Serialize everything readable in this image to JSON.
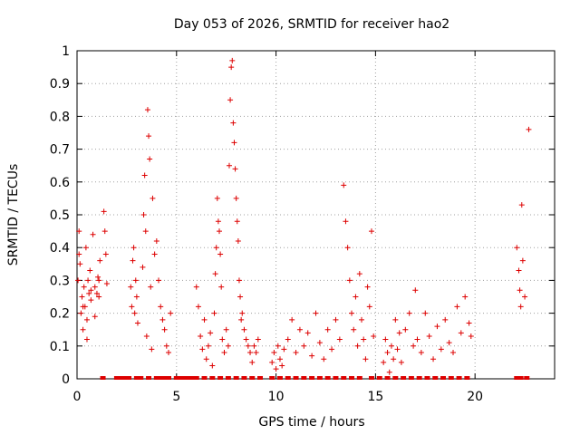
{
  "chart_data": {
    "type": "scatter",
    "title": "Day 053 of 2026, SRMTID for receiver hao2",
    "xlabel": "GPS time / hours",
    "ylabel": "SRMTID / TECUs",
    "xlim": [
      0,
      24
    ],
    "ylim": [
      0,
      1
    ],
    "xticks": [
      0,
      5,
      10,
      15,
      20
    ],
    "xtick_labels": [
      "0",
      "5",
      "10",
      "15",
      "20"
    ],
    "yticks": [
      0,
      0.1,
      0.2,
      0.3,
      0.4,
      0.5,
      0.6,
      0.7,
      0.8,
      0.9,
      1
    ],
    "ytick_labels": [
      "0",
      "0.1",
      "0.2",
      "0.3",
      "0.4",
      "0.5",
      "0.6",
      "0.7",
      "0.8",
      "0.9",
      "1"
    ],
    "grid": true,
    "marker": "+",
    "color": "#dd0000",
    "x": [
      0.05,
      0.1,
      0.15,
      0.2,
      0.25,
      0.3,
      0.35,
      0.4,
      0.45,
      0.5,
      0.55,
      0.6,
      0.65,
      0.7,
      0.8,
      0.9,
      1.0,
      1.1,
      0.1,
      0.3,
      0.5,
      0.7,
      0.9,
      1.05,
      1.1,
      1.15,
      1.35,
      1.4,
      1.45,
      1.5,
      2.7,
      2.75,
      2.8,
      2.85,
      2.9,
      2.95,
      3.0,
      3.05,
      3.3,
      3.35,
      3.4,
      3.45,
      3.5,
      3.55,
      3.6,
      3.65,
      3.7,
      3.75,
      3.8,
      3.9,
      4.0,
      4.1,
      4.2,
      4.3,
      4.4,
      4.5,
      4.6,
      4.7,
      6.0,
      6.1,
      6.2,
      6.3,
      6.4,
      6.5,
      6.6,
      6.7,
      6.8,
      6.9,
      6.95,
      7.0,
      7.05,
      7.1,
      7.15,
      7.2,
      7.25,
      7.3,
      7.4,
      7.5,
      7.6,
      7.65,
      7.7,
      7.75,
      7.8,
      7.85,
      7.9,
      7.95,
      8.0,
      8.05,
      8.1,
      8.15,
      8.2,
      8.25,
      8.3,
      8.4,
      8.5,
      8.6,
      8.7,
      8.8,
      8.9,
      9.0,
      9.1,
      9.8,
      9.9,
      10.0,
      10.1,
      10.2,
      10.3,
      10.4,
      10.6,
      10.8,
      11.0,
      11.2,
      11.4,
      11.6,
      11.8,
      12.0,
      12.2,
      12.4,
      12.6,
      12.8,
      13.0,
      13.2,
      13.4,
      13.5,
      13.6,
      13.7,
      13.8,
      13.9,
      14.0,
      14.1,
      14.2,
      14.3,
      14.4,
      14.5,
      14.6,
      14.7,
      14.8,
      14.9,
      15.4,
      15.5,
      15.6,
      15.7,
      15.8,
      15.9,
      16.0,
      16.1,
      16.2,
      16.3,
      16.5,
      16.7,
      16.9,
      17.0,
      17.1,
      17.3,
      17.5,
      17.7,
      17.9,
      18.1,
      18.3,
      18.5,
      18.7,
      18.9,
      19.1,
      19.3,
      19.5,
      19.7,
      19.8,
      22.1,
      22.2,
      22.25,
      22.3,
      22.35,
      22.4,
      22.5,
      22.7
    ],
    "y": [
      0.3,
      0.45,
      0.35,
      0.2,
      0.25,
      0.15,
      0.28,
      0.22,
      0.4,
      0.18,
      0.3,
      0.26,
      0.33,
      0.24,
      0.44,
      0.28,
      0.26,
      0.3,
      0.38,
      0.22,
      0.12,
      0.27,
      0.19,
      0.31,
      0.25,
      0.36,
      0.51,
      0.45,
      0.38,
      0.29,
      0.28,
      0.22,
      0.36,
      0.4,
      0.2,
      0.3,
      0.25,
      0.17,
      0.34,
      0.5,
      0.62,
      0.45,
      0.13,
      0.82,
      0.74,
      0.67,
      0.28,
      0.09,
      0.55,
      0.38,
      0.42,
      0.3,
      0.22,
      0.18,
      0.15,
      0.1,
      0.08,
      0.2,
      0.28,
      0.22,
      0.13,
      0.09,
      0.18,
      0.06,
      0.1,
      0.14,
      0.04,
      0.2,
      0.32,
      0.4,
      0.55,
      0.48,
      0.45,
      0.38,
      0.28,
      0.12,
      0.08,
      0.15,
      0.1,
      0.65,
      0.85,
      0.95,
      0.97,
      0.78,
      0.72,
      0.64,
      0.55,
      0.48,
      0.42,
      0.3,
      0.25,
      0.18,
      0.2,
      0.15,
      0.12,
      0.1,
      0.08,
      0.05,
      0.1,
      0.08,
      0.12,
      0.05,
      0.08,
      0.03,
      0.1,
      0.06,
      0.04,
      0.09,
      0.12,
      0.18,
      0.08,
      0.15,
      0.1,
      0.14,
      0.07,
      0.2,
      0.11,
      0.06,
      0.15,
      0.09,
      0.18,
      0.12,
      0.59,
      0.48,
      0.4,
      0.3,
      0.2,
      0.15,
      0.25,
      0.1,
      0.32,
      0.18,
      0.12,
      0.06,
      0.28,
      0.22,
      0.45,
      0.13,
      0.05,
      0.12,
      0.08,
      0.02,
      0.1,
      0.06,
      0.18,
      0.09,
      0.14,
      0.05,
      0.15,
      0.2,
      0.1,
      0.27,
      0.12,
      0.08,
      0.2,
      0.13,
      0.06,
      0.16,
      0.09,
      0.18,
      0.11,
      0.08,
      0.22,
      0.14,
      0.25,
      0.17,
      0.13,
      0.4,
      0.33,
      0.27,
      0.22,
      0.53,
      0.36,
      0.25,
      0.76
    ],
    "zero_x": [
      1.3,
      2.0,
      2.2,
      2.4,
      2.6,
      3.0,
      3.2,
      3.6,
      4.0,
      4.2,
      4.4,
      4.6,
      5.0,
      5.2,
      5.4,
      5.6,
      5.8,
      6.0,
      6.4,
      6.8,
      7.2,
      7.6,
      8.0,
      8.4,
      8.8,
      9.2,
      9.8,
      10.2,
      10.6,
      11.0,
      11.4,
      11.8,
      12.2,
      12.6,
      13.0,
      13.4,
      13.8,
      14.2,
      14.8,
      15.2,
      15.6,
      16.0,
      16.4,
      16.8,
      17.2,
      17.6,
      18.0,
      18.4,
      18.8,
      19.2,
      19.6,
      22.1,
      22.3,
      22.6
    ]
  }
}
